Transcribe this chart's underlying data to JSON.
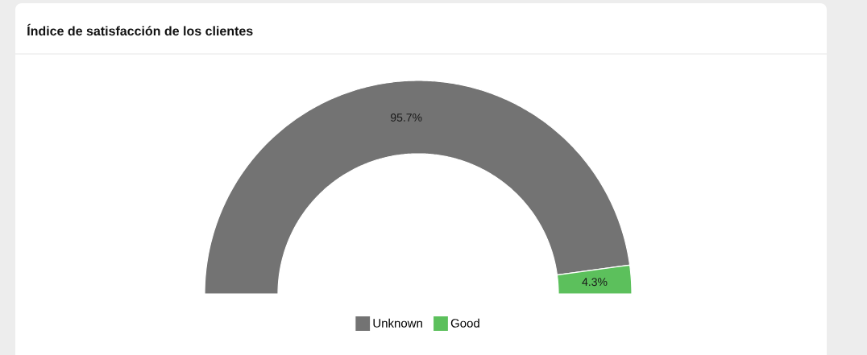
{
  "chart_data": {
    "type": "donut",
    "title": "Índice de satisfacción de los clientes",
    "categories": [
      "Unknown",
      "Good"
    ],
    "values": [
      95.7,
      4.3
    ],
    "colors": [
      "#737373",
      "#5cc05c"
    ],
    "value_labels": [
      "95.7%",
      "4.3%"
    ],
    "legend": "bottom"
  }
}
